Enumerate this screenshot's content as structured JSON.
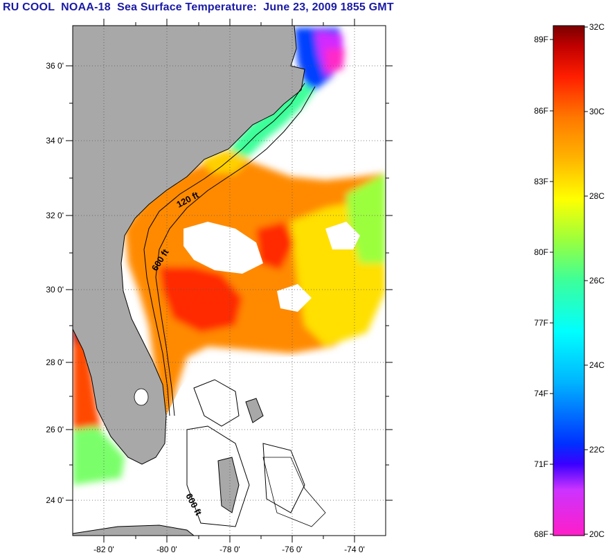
{
  "title": "RU COOL  NOAA-18  Sea Surface Temperature:  June 23, 2009 1855 GMT",
  "map": {
    "longitude_ticks": [
      "-82 0'",
      "-80 0'",
      "-78 0'",
      "-76 0'",
      "-74 0'"
    ],
    "latitude_ticks": [
      "36 0'",
      "34 0'",
      "32 0'",
      "30 0'",
      "28 0'",
      "26 0'",
      "24 0'"
    ],
    "lon_range": [
      -83,
      -73
    ],
    "lat_range": [
      23,
      37
    ],
    "contour_labels": [
      "120 ft",
      "600 ft",
      "600 ft"
    ],
    "land_color": "#a8a8a8",
    "missing_data_color": "#ffffff"
  },
  "colorbar": {
    "celsius_labels": [
      "32C",
      "30C",
      "28C",
      "26C",
      "24C",
      "22C",
      "20C"
    ],
    "fahrenheit_labels": [
      "89F",
      "86F",
      "83F",
      "80F",
      "77F",
      "74F",
      "71F",
      "68F"
    ],
    "range_c": [
      20,
      32
    ]
  }
}
